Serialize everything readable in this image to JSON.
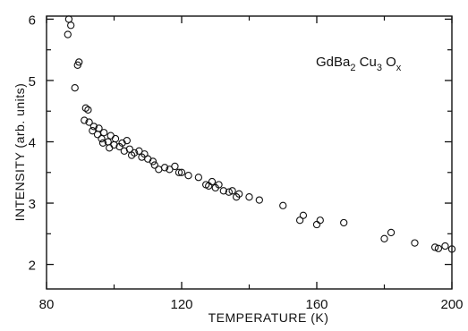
{
  "chart_data": {
    "type": "scatter",
    "xlabel": "TEMPERATURE (K)",
    "ylabel": "INTENSITY (arb. units)",
    "annotation": {
      "parts": [
        {
          "text": "GdBa",
          "sub": false
        },
        {
          "text": "2",
          "sub": true
        },
        {
          "text": " Cu",
          "sub": false
        },
        {
          "text": "3",
          "sub": true
        },
        {
          "text": " O",
          "sub": false
        },
        {
          "text": "x",
          "sub": true
        }
      ]
    },
    "xlim": [
      80,
      200
    ],
    "ylim": [
      1.6,
      6.05
    ],
    "xticks": [
      80,
      120,
      160,
      200
    ],
    "yticks": [
      2,
      3,
      4,
      5,
      6
    ],
    "xtick_labels": [
      "80",
      "120",
      "160",
      "200"
    ],
    "ytick_labels": [
      "2",
      "3",
      "4",
      "5",
      "6"
    ],
    "grid": false,
    "marker": "open-circle",
    "series": [
      {
        "points": [
          [
            86.6,
            6.0
          ],
          [
            87.2,
            5.9
          ],
          [
            86.3,
            5.75
          ],
          [
            89.6,
            5.3
          ],
          [
            89.2,
            5.25
          ],
          [
            88.4,
            4.88
          ],
          [
            91.6,
            4.55
          ],
          [
            92.3,
            4.52
          ],
          [
            91.2,
            4.35
          ],
          [
            92.6,
            4.32
          ],
          [
            94.0,
            4.25
          ],
          [
            93.6,
            4.18
          ],
          [
            95.5,
            4.22
          ],
          [
            95.1,
            4.12
          ],
          [
            96.3,
            4.05
          ],
          [
            97.0,
            4.15
          ],
          [
            96.7,
            3.98
          ],
          [
            98.2,
            4.0
          ],
          [
            99.0,
            4.1
          ],
          [
            98.6,
            3.9
          ],
          [
            100.0,
            3.95
          ],
          [
            100.4,
            4.05
          ],
          [
            101.6,
            3.92
          ],
          [
            102.4,
            3.98
          ],
          [
            103.8,
            4.02
          ],
          [
            103.0,
            3.85
          ],
          [
            104.6,
            3.88
          ],
          [
            105.2,
            3.78
          ],
          [
            106.0,
            3.82
          ],
          [
            107.4,
            3.85
          ],
          [
            108.2,
            3.75
          ],
          [
            109.0,
            3.8
          ],
          [
            110.0,
            3.72
          ],
          [
            111.5,
            3.68
          ],
          [
            112.0,
            3.62
          ],
          [
            113.2,
            3.55
          ],
          [
            115.0,
            3.58
          ],
          [
            116.4,
            3.55
          ],
          [
            118.0,
            3.6
          ],
          [
            119.2,
            3.5
          ],
          [
            120.0,
            3.5
          ],
          [
            122.0,
            3.45
          ],
          [
            125.0,
            3.42
          ],
          [
            127.2,
            3.3
          ],
          [
            128.0,
            3.28
          ],
          [
            129.0,
            3.35
          ],
          [
            130.0,
            3.25
          ],
          [
            131.0,
            3.3
          ],
          [
            132.4,
            3.2
          ],
          [
            134.0,
            3.18
          ],
          [
            135.0,
            3.2
          ],
          [
            136.2,
            3.1
          ],
          [
            137.0,
            3.15
          ],
          [
            140.0,
            3.1
          ],
          [
            143.0,
            3.05
          ],
          [
            150.0,
            2.96
          ],
          [
            155.0,
            2.72
          ],
          [
            156.0,
            2.8
          ],
          [
            160.0,
            2.65
          ],
          [
            161.0,
            2.72
          ],
          [
            168.0,
            2.68
          ],
          [
            180.0,
            2.42
          ],
          [
            182.0,
            2.52
          ],
          [
            189.0,
            2.35
          ],
          [
            195.0,
            2.28
          ],
          [
            196.0,
            2.26
          ],
          [
            198.0,
            2.3
          ],
          [
            200.0,
            2.25
          ]
        ]
      }
    ]
  }
}
